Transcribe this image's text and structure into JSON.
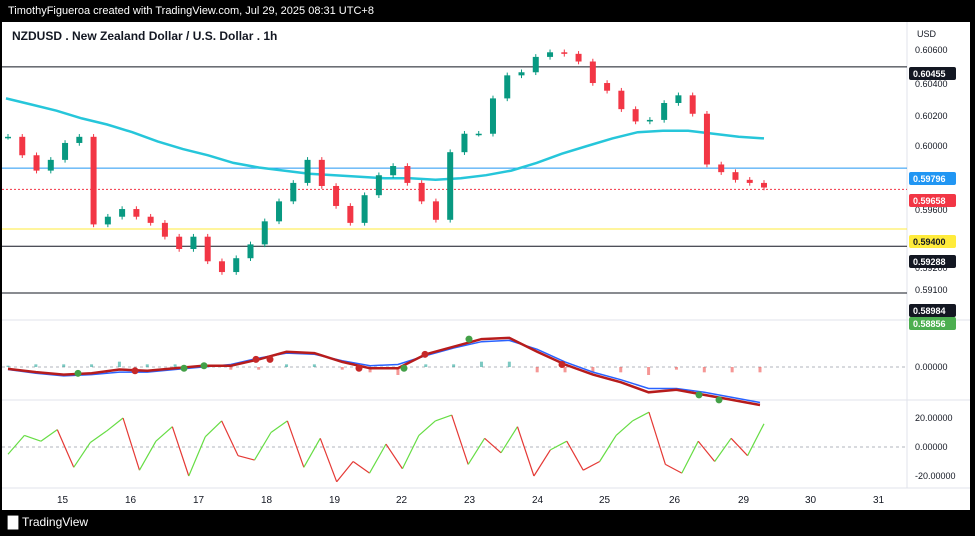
{
  "header": {
    "credit": "TimothyFigueroa created with TradingView.com, Jul 29, 2025 08:31 UTC+8"
  },
  "footer": {
    "brand": "TradingView"
  },
  "chart_data": [
    {
      "type": "line",
      "title": "NZDUSD . New Zealand Dollar / U.S. Dollar . 1h",
      "currency": "USD",
      "x_ticks": [
        "15",
        "16",
        "17",
        "18",
        "19",
        "22",
        "23",
        "24",
        "25",
        "26",
        "29",
        "30",
        "31"
      ],
      "y_ticks": [
        "0.60600",
        "0.60400",
        "0.60200",
        "0.60000",
        "0.59600",
        "0.59400",
        "0.59200",
        "0.59100",
        "0.58856"
      ],
      "ylim": [
        0.5886,
        0.6063
      ],
      "price_labels": [
        {
          "value": "0.60455",
          "style": "black"
        },
        {
          "value": "0.59796",
          "style": "blue"
        },
        {
          "value": "0.59658",
          "style": "red"
        },
        {
          "value": "0.59400",
          "style": "yellow"
        },
        {
          "value": "0.59288",
          "style": "black"
        },
        {
          "value": "0.58984",
          "style": "black"
        },
        {
          "value": "0.58856",
          "style": "green"
        }
      ],
      "horizontal_levels": [
        {
          "value": 0.60455,
          "color": "#131722"
        },
        {
          "value": 0.59796,
          "color": "#2196f3"
        },
        {
          "value": 0.59658,
          "color": "#f23645",
          "dotted": true
        },
        {
          "value": 0.594,
          "color": "#ffeb3b"
        },
        {
          "value": 0.59288,
          "color": "#131722"
        },
        {
          "value": 0.58984,
          "color": "#131722"
        }
      ],
      "series": [
        {
          "values": [
            0.6025,
            0.6021,
            0.6017,
            0.6012,
            0.6008,
            0.6003,
            0.5997,
            0.5992,
            0.5988,
            0.5983,
            0.598,
            0.5978,
            0.5976,
            0.5975,
            0.5974,
            0.5973,
            0.5973,
            0.5972,
            0.5973,
            0.5975,
            0.5978,
            0.5983,
            0.5989,
            0.5994,
            0.5999,
            0.6003,
            0.6004,
            0.6004,
            0.6002,
            0.6,
            0.5999
          ]
        },
        {
          "values": [
            0.6,
            0.5988,
            0.5978,
            0.5985,
            0.5996,
            0.6,
            0.5943,
            0.5948,
            0.5953,
            0.5948,
            0.5944,
            0.5935,
            0.5927,
            0.5935,
            0.5919,
            0.5912,
            0.5921,
            0.593,
            0.5945,
            0.5958,
            0.597,
            0.5985,
            0.5968,
            0.5955,
            0.5944,
            0.5962,
            0.5975,
            0.5981,
            0.597,
            0.5958,
            0.5946,
            0.599,
            0.6002,
            0.6002,
            0.6025,
            0.604,
            0.6042,
            0.6052,
            0.6055,
            0.6054,
            0.6049,
            0.6035,
            0.603,
            0.6018,
            0.601,
            0.6011,
            0.6022,
            0.6027,
            0.6015,
            0.5982,
            0.5977,
            0.5972,
            0.597,
            0.5967
          ]
        }
      ]
    },
    {
      "type": "line",
      "y_ticks": [
        "0.00000"
      ],
      "series": [
        {
          "values": [
            -0.00015,
            -0.0004,
            -0.0006,
            -0.0005,
            -0.0002,
            -0.0003,
            -0.0001,
            0.0001,
            0.0001,
            0.0006,
            0.0012,
            0.0011,
            0.0004,
            -0.0001,
            -0.0001,
            0.001,
            0.0016,
            0.0022,
            0.0023,
            0.0012,
            0.0002,
            -0.0006,
            -0.0012,
            -0.002,
            -0.0018,
            -0.0022,
            -0.0026,
            -0.003
          ]
        },
        {
          "values": [
            -0.0002,
            -0.0005,
            -0.0007,
            -0.0006,
            -0.0004,
            -0.0004,
            -0.0002,
            0.0,
            0.0002,
            0.0007,
            0.0011,
            0.001,
            0.0005,
            0.0001,
            0.0002,
            0.0009,
            0.0015,
            0.002,
            0.0021,
            0.0014,
            0.0004,
            -0.0004,
            -0.001,
            -0.0017,
            -0.0017,
            -0.002,
            -0.0024,
            -0.0028
          ]
        }
      ]
    },
    {
      "type": "line",
      "y_ticks": [
        "20.00000",
        "0.00000",
        "-20.00000"
      ],
      "series": [
        {
          "values": [
            -5,
            8,
            4,
            12,
            -14,
            3,
            11,
            20,
            -16,
            4,
            14,
            -20,
            7,
            18,
            -6,
            -9,
            10,
            18,
            -14,
            6,
            -24,
            -10,
            -18,
            2,
            -15,
            8,
            18,
            22,
            -12,
            6,
            -4,
            14,
            -20,
            -2,
            4,
            -16,
            -10,
            8,
            18,
            24,
            -12,
            -18,
            4,
            -10,
            6,
            -6,
            16
          ]
        }
      ]
    }
  ]
}
